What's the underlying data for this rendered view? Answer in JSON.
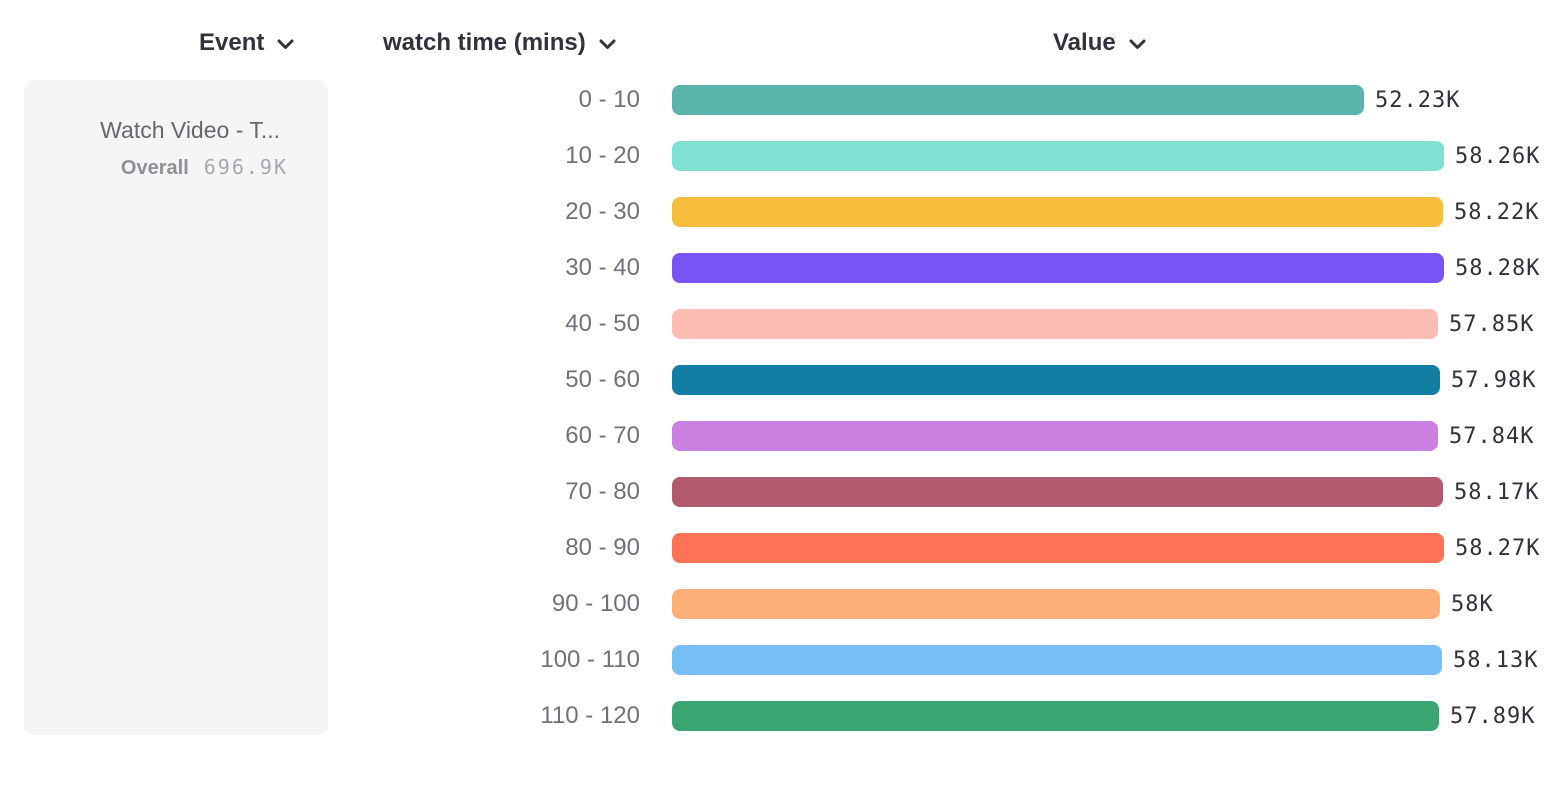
{
  "header": {
    "columns": [
      {
        "label": "Event"
      },
      {
        "label": "watch time (mins)"
      },
      {
        "label": "Value"
      }
    ]
  },
  "event_card": {
    "title": "Watch Video - T...",
    "overall_label": "Overall",
    "overall_value": "696.9K"
  },
  "chart_data": {
    "type": "bar",
    "orientation": "horizontal",
    "title": "",
    "xlabel": "Value",
    "ylabel": "watch time (mins)",
    "xlim": [
      0,
      58.28
    ],
    "unit": "thousands",
    "grid": false,
    "legend": false,
    "categories": [
      "0 - 10",
      "10 - 20",
      "20 - 30",
      "30 - 40",
      "40 - 50",
      "50 - 60",
      "60 - 70",
      "70 - 80",
      "80 - 90",
      "90 - 100",
      "100 - 110",
      "110 - 120"
    ],
    "values": [
      52.23,
      58.26,
      58.22,
      58.28,
      57.85,
      57.98,
      57.84,
      58.17,
      58.27,
      58.0,
      58.13,
      57.89
    ],
    "value_labels": [
      "52.23K",
      "58.26K",
      "58.22K",
      "58.28K",
      "57.85K",
      "57.98K",
      "57.84K",
      "58.17K",
      "58.27K",
      "58K",
      "58.13K",
      "57.89K"
    ],
    "colors": [
      "#5ab4ac",
      "#7fe0d4",
      "#f7bd3d",
      "#7a53f5",
      "#fdbdb4",
      "#137ea4",
      "#ca80e0",
      "#b25a70",
      "#fe7357",
      "#fdb079",
      "#76bef4",
      "#3ba572"
    ]
  }
}
